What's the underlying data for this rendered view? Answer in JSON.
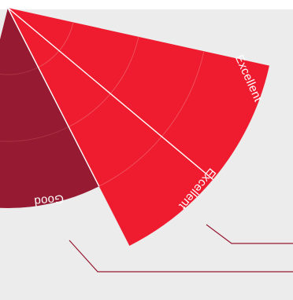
{
  "chart_data": {
    "type": "polar-area",
    "rings": 4,
    "segments": [
      {
        "label": "Excellent",
        "rating_level": 4,
        "color": "#ee1c2e"
      },
      {
        "label": "Excellent",
        "rating_level": 4,
        "color": "#ee1c2e"
      },
      {
        "label": "Good",
        "rating_level": 3,
        "color": "#961a31"
      }
    ],
    "colors": {
      "background_panel": "#ececec",
      "ring_line": "#f04e5c",
      "ring_line_dark": "#aa3244",
      "separator": "#ffffff",
      "leader_line": "#961a31"
    }
  }
}
